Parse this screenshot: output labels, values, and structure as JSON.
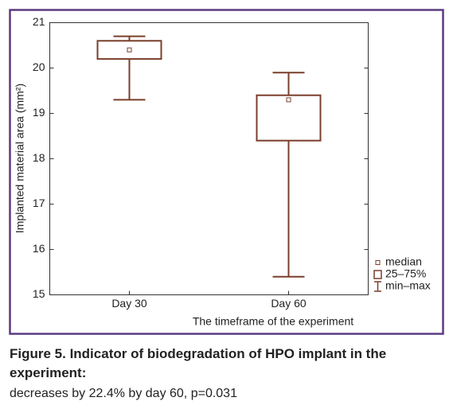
{
  "chart_data": {
    "type": "box",
    "ylabel": "Implanted material area (mm²)",
    "xlabel": "The timeframe of the experiment",
    "categories": [
      "Day 30",
      "Day 60"
    ],
    "min": [
      19.3,
      15.4
    ],
    "q1": [
      20.2,
      18.4
    ],
    "median": [
      20.4,
      19.3
    ],
    "q3": [
      20.6,
      19.4
    ],
    "max": [
      20.7,
      19.9
    ],
    "ylim": [
      15,
      21
    ],
    "yticks": [
      15,
      16,
      17,
      18,
      19,
      20,
      21
    ],
    "color": "#7a3f2b",
    "legend": [
      "median",
      "25–75%",
      "min–max"
    ],
    "legend_position": "lower right"
  },
  "caption": {
    "title": "Figure 5. Indicator of biodegradation of HPO implant in the experiment:",
    "text": "decreases by 22.4% by day 60, p=0.031"
  }
}
